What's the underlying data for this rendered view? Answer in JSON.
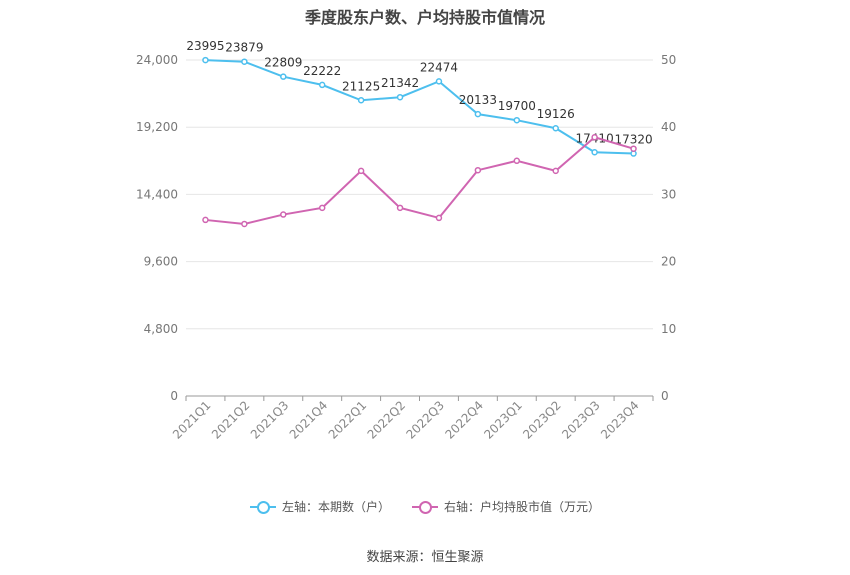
{
  "title": "季度股东户数、户均持股市值情况",
  "source": "数据来源：恒生聚源",
  "colors": {
    "left": "#4dbfee",
    "right": "#d065b1"
  },
  "legend": [
    {
      "label": "左轴：本期数（户）",
      "color": "#4dbfee"
    },
    {
      "label": "右轴：户均持股市值（万元）",
      "color": "#d065b1"
    }
  ],
  "chart_data": {
    "type": "line",
    "title": "季度股东户数、户均持股市值情况",
    "categories": [
      "2021Q1",
      "2021Q2",
      "2021Q3",
      "2021Q4",
      "2022Q1",
      "2022Q2",
      "2022Q3",
      "2022Q4",
      "2023Q1",
      "2023Q2",
      "2023Q3",
      "2023Q4"
    ],
    "y_left": {
      "ticks": [
        "0",
        "4,800",
        "9,600",
        "14,400",
        "19,200",
        "24,000"
      ],
      "ylim": [
        0,
        24000
      ]
    },
    "y_right": {
      "ticks": [
        "0",
        "10",
        "20",
        "30",
        "40",
        "50"
      ],
      "ylim": [
        0,
        50
      ]
    },
    "series": [
      {
        "name": "左轴：本期数（户）",
        "axis": "left",
        "color": "#4dbfee",
        "values": [
          23995,
          23879,
          22809,
          22222,
          21125,
          21342,
          22474,
          20133,
          19700,
          19126,
          17410,
          17320
        ],
        "labels": [
          "23995",
          "23879",
          "22809",
          "22222",
          "21125",
          "21342",
          "22474",
          "20133",
          "19700",
          "19126",
          "17410",
          "17320"
        ]
      },
      {
        "name": "右轴：户均持股市值（万元）",
        "axis": "right",
        "color": "#d065b1",
        "values": [
          26.2,
          25.6,
          27.0,
          28.0,
          33.5,
          28.0,
          26.5,
          33.6,
          35.0,
          33.5,
          38.5,
          36.8
        ]
      }
    ],
    "grid": true,
    "legend_position": "bottom"
  }
}
